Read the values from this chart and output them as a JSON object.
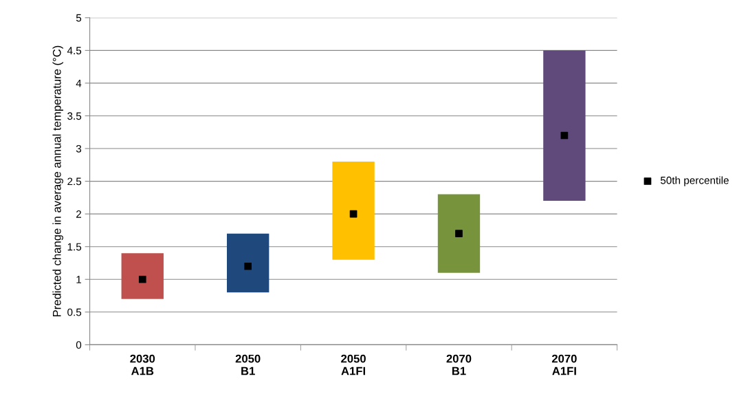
{
  "chart_data": {
    "type": "bar",
    "ylabel": "Predicted change in average annual temperature (°C)",
    "categories": [
      "2030\nA1B",
      "2050\nB1",
      "2050\nA1FI",
      "2070\nB1",
      "2070\nA1FI"
    ],
    "series": [
      {
        "colors": [
          "#c0504d",
          "#1f497d",
          "#ffc000",
          "#77933c",
          "#604a7b"
        ],
        "values": [
          0.7,
          0.9,
          1.5,
          1.2,
          2.3
        ],
        "base": [
          0.7,
          0.8,
          1.3,
          1.1,
          2.2
        ]
      },
      {
        "type": "scatter",
        "name": "50th percentile",
        "color": "#000000",
        "marker": "square",
        "x": [
          "2030\nA1B",
          "2050\nB1",
          "2050\nA1FI",
          "2070\nB1",
          "2070\nA1FI"
        ],
        "values": [
          1.0,
          1.2,
          2.0,
          1.7,
          3.2
        ]
      }
    ],
    "ylim": [
      0,
      5
    ],
    "yticks": [
      0,
      0.5,
      1,
      1.5,
      2,
      2.5,
      3,
      3.5,
      4,
      4.5,
      5
    ],
    "grid": "y",
    "legend": "right"
  }
}
